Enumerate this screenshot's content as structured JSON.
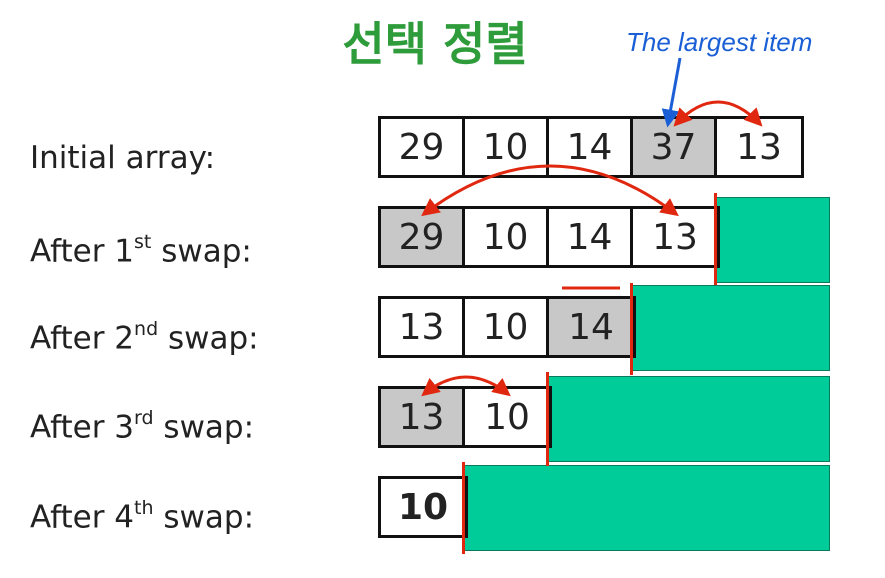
{
  "title": "선택 정렬",
  "annotation": "The largest item",
  "rows": [
    {
      "label_pre": "Initial array:",
      "label_sup": "",
      "label_post": "",
      "cells": [
        "29",
        "10",
        "14",
        "37",
        "13"
      ]
    },
    {
      "label_pre": "After 1",
      "label_sup": "st",
      "label_post": " swap:",
      "cells": [
        "29",
        "10",
        "14",
        "13"
      ]
    },
    {
      "label_pre": "After 2",
      "label_sup": "nd",
      "label_post": " swap:",
      "cells": [
        "13",
        "10",
        "14"
      ]
    },
    {
      "label_pre": "After 3",
      "label_sup": "rd",
      "label_post": " swap:",
      "cells": [
        "13",
        "10"
      ]
    },
    {
      "label_pre": "After 4",
      "label_sup": "th",
      "label_post": " swap:",
      "cells": [
        "10"
      ]
    }
  ],
  "colors": {
    "title": "#2e9c3a",
    "annotation": "#1a5fd6",
    "sorted": "#00cc99",
    "swap_arrow": "#e02810",
    "divider": "#e02810",
    "highlight_cell": "#c8c8c8"
  }
}
